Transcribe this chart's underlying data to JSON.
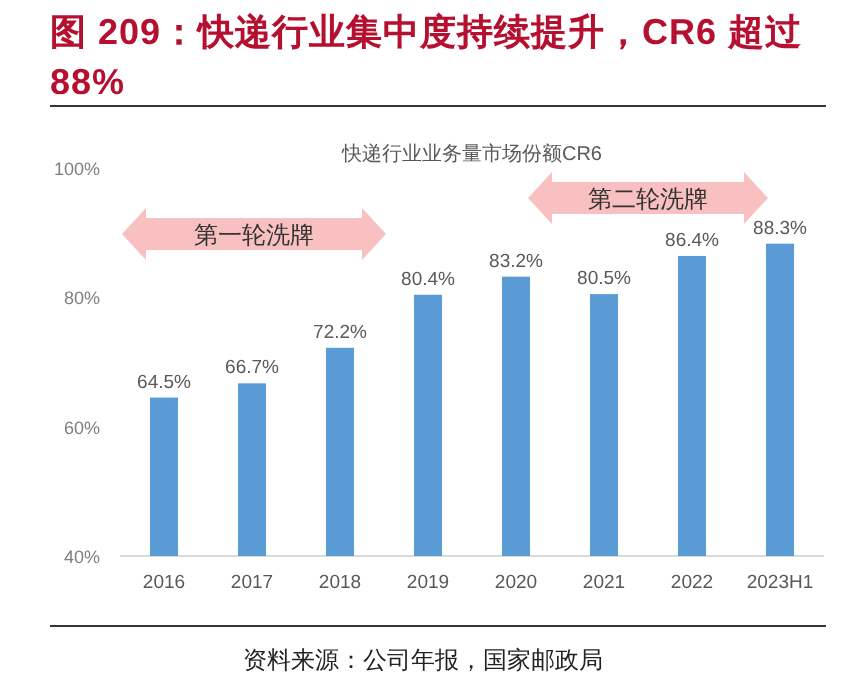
{
  "chart_data": {
    "type": "bar",
    "title": "图 209：快递行业集中度持续提升，CR6 超过 88%",
    "subtitle": "快递行业业务量市场份额CR6",
    "categories": [
      "2016",
      "2017",
      "2018",
      "2019",
      "2020",
      "2021",
      "2022",
      "2023H1"
    ],
    "values": [
      64.5,
      66.7,
      72.2,
      80.4,
      83.2,
      80.5,
      86.4,
      88.3
    ],
    "value_labels": [
      "64.5%",
      "66.7%",
      "72.2%",
      "80.4%",
      "83.2%",
      "80.5%",
      "86.4%",
      "88.3%"
    ],
    "color": "#5b9bd5",
    "ylim": [
      40,
      100
    ],
    "yticks": [
      {
        "value": 40,
        "label": "40%"
      },
      {
        "value": 60,
        "label": "60%"
      },
      {
        "value": 80,
        "label": "80%"
      },
      {
        "value": 100,
        "label": "100%"
      }
    ],
    "grid": false,
    "annotations": [
      "第一轮洗牌",
      "第二轮洗牌",
      "资料来源：公司年报，国家邮政局"
    ]
  }
}
